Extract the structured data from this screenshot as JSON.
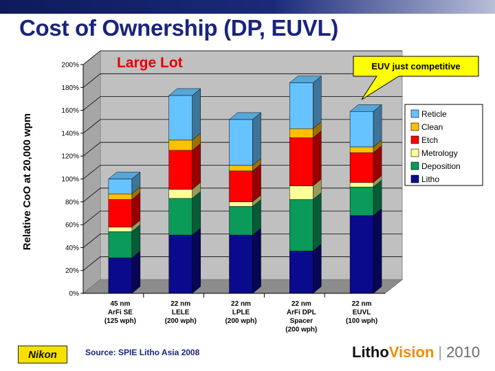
{
  "slide": {
    "title": "Cost of Ownership (DP, EUVL)",
    "source": "Source: SPIE Litho Asia 2008",
    "logo_text": "Nikon",
    "brand_litho": "Litho",
    "brand_vision": "Vision",
    "brand_sep": "|",
    "brand_year": "2010"
  },
  "chart_data": {
    "type": "bar",
    "stacked": true,
    "title": "Large Lot",
    "ylabel": "Relative CoO at 20,000 wpm",
    "xlabel": "",
    "ylim": [
      0,
      200
    ],
    "yticks": [
      "0%",
      "20%",
      "40%",
      "60%",
      "80%",
      "100%",
      "120%",
      "140%",
      "160%",
      "180%",
      "200%"
    ],
    "categories": [
      [
        "45 nm",
        "ArFi SE",
        "(125 wph)"
      ],
      [
        "22 nm",
        "LELE",
        "(200 wph)"
      ],
      [
        "22 nm",
        "LPLE",
        "(200 wph)"
      ],
      [
        "22 nm",
        "ArFi DPL",
        "Spacer",
        "(200 wph)"
      ],
      [
        "22 nm",
        "EUVL",
        "(100 wph)"
      ]
    ],
    "series": [
      {
        "name": "Litho",
        "color": "#0a0a8c",
        "values": [
          31,
          51,
          51,
          37,
          68
        ]
      },
      {
        "name": "Deposition",
        "color": "#0a9a5a",
        "values": [
          23,
          32,
          25,
          45,
          25
        ]
      },
      {
        "name": "Metrology",
        "color": "#ffff99",
        "values": [
          4,
          8,
          4,
          12,
          4
        ]
      },
      {
        "name": "Etch",
        "color": "#ff0000",
        "values": [
          24,
          34,
          27,
          42,
          26
        ]
      },
      {
        "name": "Clean",
        "color": "#ffc000",
        "values": [
          5,
          9,
          5,
          8,
          5
        ]
      },
      {
        "name": "Reticle",
        "color": "#66c3ff",
        "values": [
          13,
          39,
          40,
          40,
          31
        ]
      }
    ],
    "legend_position": "right",
    "grid": true,
    "annotation": "EUV just competitive",
    "annotation_target": "22 nm EUVL"
  }
}
